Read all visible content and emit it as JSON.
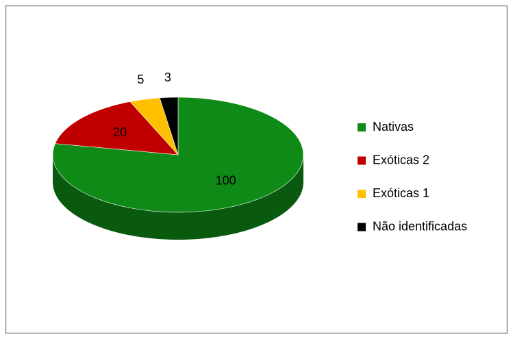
{
  "chart_data": {
    "type": "pie3d",
    "categories": [
      "Nativas",
      "Exóticas 2",
      "Exóticas 1",
      "Não identificadas"
    ],
    "values": [
      100,
      20,
      5,
      3
    ],
    "colors": [
      "#0f8a17",
      "#c00000",
      "#ffc000",
      "#000000"
    ],
    "legend": "right"
  }
}
